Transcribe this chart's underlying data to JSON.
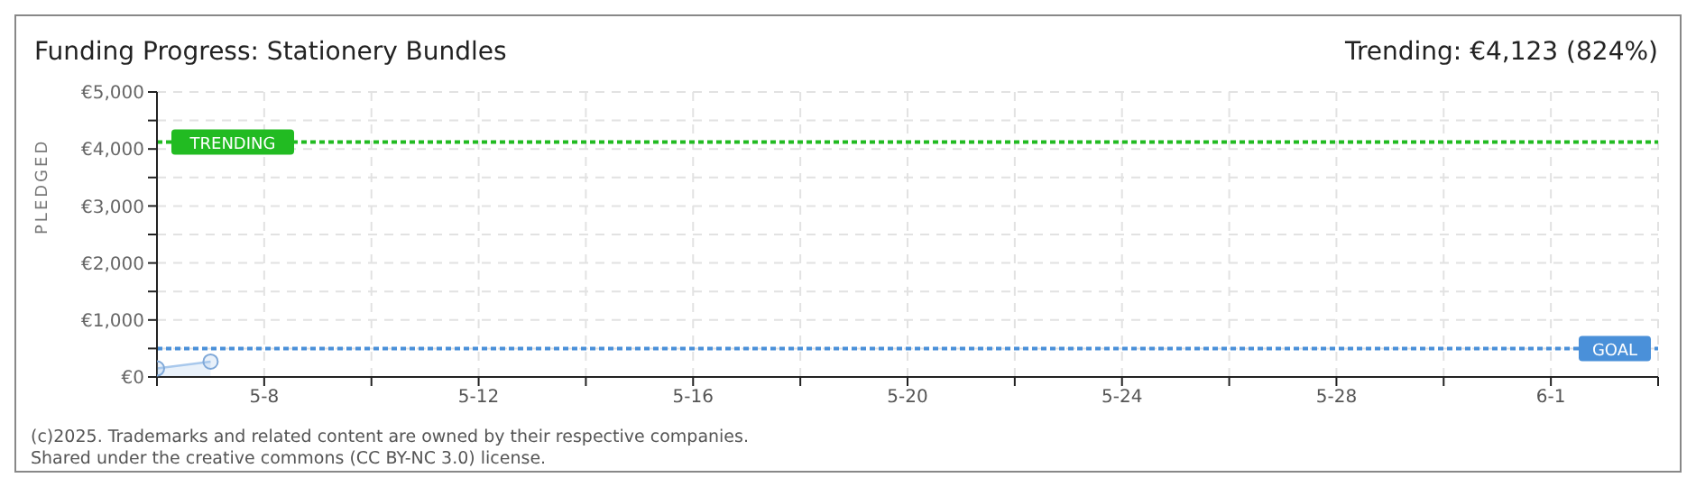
{
  "chart_data": {
    "type": "area",
    "title": "Funding Progress: Stationery Bundles",
    "subtitle": "Trending: €4,123 (824%)",
    "ylabel": "PLEDGED",
    "x": [
      "--05-06",
      "--05-07"
    ],
    "series": [
      {
        "color": "#a8c8ec",
        "values": [
          150,
          270
        ]
      }
    ],
    "xlim": [
      "--05-06",
      "--06-03"
    ],
    "xticks": [
      {
        "value": "--05-06",
        "label": null
      },
      {
        "value": "--05-08",
        "label": "5-8"
      },
      {
        "value": "--05-10",
        "label": null
      },
      {
        "value": "--05-12",
        "label": "5-12"
      },
      {
        "value": "--05-14",
        "label": null
      },
      {
        "value": "--05-16",
        "label": "5-16"
      },
      {
        "value": "--05-18",
        "label": null
      },
      {
        "value": "--05-20",
        "label": "5-20"
      },
      {
        "value": "--05-22",
        "label": null
      },
      {
        "value": "--05-24",
        "label": "5-24"
      },
      {
        "value": "--05-26",
        "label": null
      },
      {
        "value": "--05-28",
        "label": "5-28"
      },
      {
        "value": "--05-30",
        "label": null
      },
      {
        "value": "--06-01",
        "label": "6-1"
      },
      {
        "value": "--06-03",
        "label": null
      }
    ],
    "ylim": [
      0,
      5000
    ],
    "yticks": [
      {
        "value": 0,
        "label": "€0"
      },
      {
        "value": 500,
        "label": null
      },
      {
        "value": 1000,
        "label": "€1,000"
      },
      {
        "value": 1500,
        "label": null
      },
      {
        "value": 2000,
        "label": "€2,000"
      },
      {
        "value": 2500,
        "label": null
      },
      {
        "value": 3000,
        "label": "€3,000"
      },
      {
        "value": 3500,
        "label": null
      },
      {
        "value": 4000,
        "label": "€4,000"
      },
      {
        "value": 4500,
        "label": null
      },
      {
        "value": 5000,
        "label": "€5,000"
      }
    ],
    "ref_lines": [
      {
        "axis": "y",
        "value": 4123,
        "label": "TRENDING",
        "color": "#22bb22",
        "line_style": "dotted"
      },
      {
        "axis": "y",
        "value": 500,
        "label": "GOAL",
        "color": "#4a90d9",
        "line_style": "dotted"
      }
    ],
    "grid": true,
    "marker": "circle",
    "annotations": [
      "(c)2025. Trademarks and related content are owned by their respective companies.",
      "Shared under the creative commons (CC BY-NC 3.0) license."
    ]
  }
}
